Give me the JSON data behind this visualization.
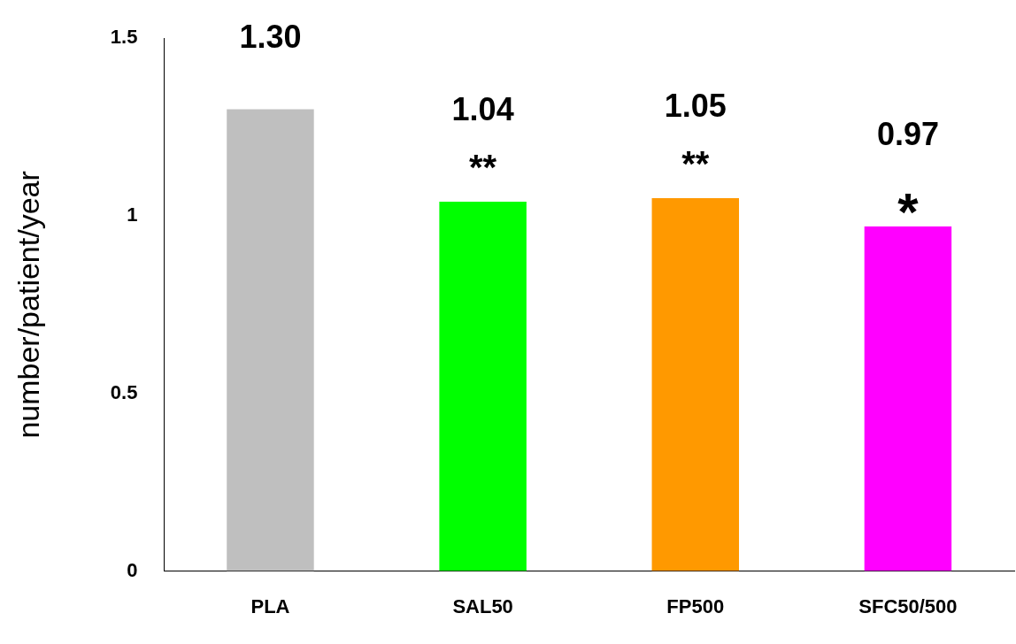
{
  "chart_data": {
    "type": "bar",
    "ylabel": "number/patient/year",
    "categories": [
      "PLA",
      "SAL50",
      "FP500",
      "SFC50/500"
    ],
    "values": [
      1.3,
      1.04,
      1.05,
      0.97
    ],
    "colors": [
      "#bfbfbf",
      "#00ff00",
      "#ff9900",
      "#ff00ff"
    ],
    "value_labels": [
      "1.30",
      "1.04",
      "1.05",
      "0.97"
    ],
    "annotations": [
      {
        "text": "**",
        "x": "SAL50",
        "y": 1.04
      },
      {
        "text": "**",
        "x": "FP500",
        "y": 1.05
      },
      {
        "text": "*",
        "x": "SFC50/500",
        "y": 0.97
      }
    ],
    "ylim": [
      0,
      1.5
    ],
    "yticks": [
      0,
      0.5,
      1,
      1.5
    ],
    "grid": false,
    "legend": false
  }
}
